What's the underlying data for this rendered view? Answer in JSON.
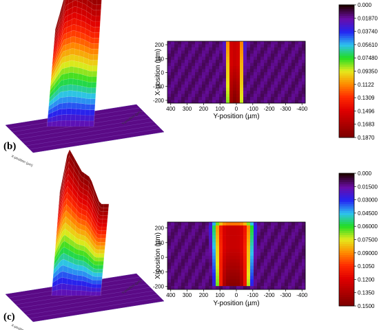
{
  "chart_data": [
    {
      "type": "heatmap",
      "panel_label": "(b)",
      "surface_axis_labels": {
        "x": "X-position (µm)",
        "y": "Y-position (µm)"
      },
      "map": {
        "xlabel": "Y-position (µm)",
        "ylabel": "X-position (µm)",
        "x_ticks": [
          400,
          300,
          200,
          100,
          0,
          -100,
          -200,
          -300,
          -400
        ],
        "y_ticks": [
          200,
          100,
          0,
          -100,
          -200
        ],
        "xlim": [
          420,
          -420
        ],
        "ylim": [
          -220,
          225
        ],
        "peak": {
          "center_y_um": 10,
          "half_width_um": 45,
          "x_from_um": -215,
          "x_to_um": 265
        }
      },
      "colorbar": {
        "ticks": [
          "0.000",
          "0.01870",
          "0.03740",
          "0.05610",
          "0.07480",
          "0.09350",
          "0.1122",
          "0.1309",
          "0.1496",
          "0.1683",
          "0.1870"
        ],
        "range": [
          0,
          0.187
        ],
        "colors": [
          "#200000",
          "#6a0da8",
          "#2424f2",
          "#2ec2f0",
          "#22dd22",
          "#e5ea1c",
          "#ff8c00",
          "#ff2a00",
          "#e00000",
          "#b00000",
          "#800000"
        ]
      }
    },
    {
      "type": "heatmap",
      "panel_label": "(c)",
      "surface_axis_labels": {
        "x": "X-position (µm)",
        "y": "Y-position (µm)"
      },
      "map": {
        "xlabel": "Y-position (µm)",
        "ylabel": "X-position (µm)",
        "x_ticks": [
          400,
          300,
          200,
          100,
          0,
          -100,
          -200,
          -300,
          -400
        ],
        "y_ticks": [
          200,
          100,
          0,
          -100,
          -200
        ],
        "xlim": [
          420,
          -420
        ],
        "ylim": [
          -220,
          240
        ],
        "peak": {
          "center_y_um": 20,
          "half_width_um": 100,
          "x_from_um": -205,
          "x_to_um": 245
        }
      },
      "colorbar": {
        "ticks": [
          "0.000",
          "0.01500",
          "0.03000",
          "0.04500",
          "0.06000",
          "0.07500",
          "0.09000",
          "0.1050",
          "0.1200",
          "0.1350",
          "0.1500"
        ],
        "range": [
          0,
          0.15
        ],
        "colors": [
          "#200000",
          "#6a0da8",
          "#2424f2",
          "#2ec2f0",
          "#22dd22",
          "#e5ea1c",
          "#ff8c00",
          "#ff2a00",
          "#e00000",
          "#b00000",
          "#800000"
        ]
      }
    }
  ]
}
